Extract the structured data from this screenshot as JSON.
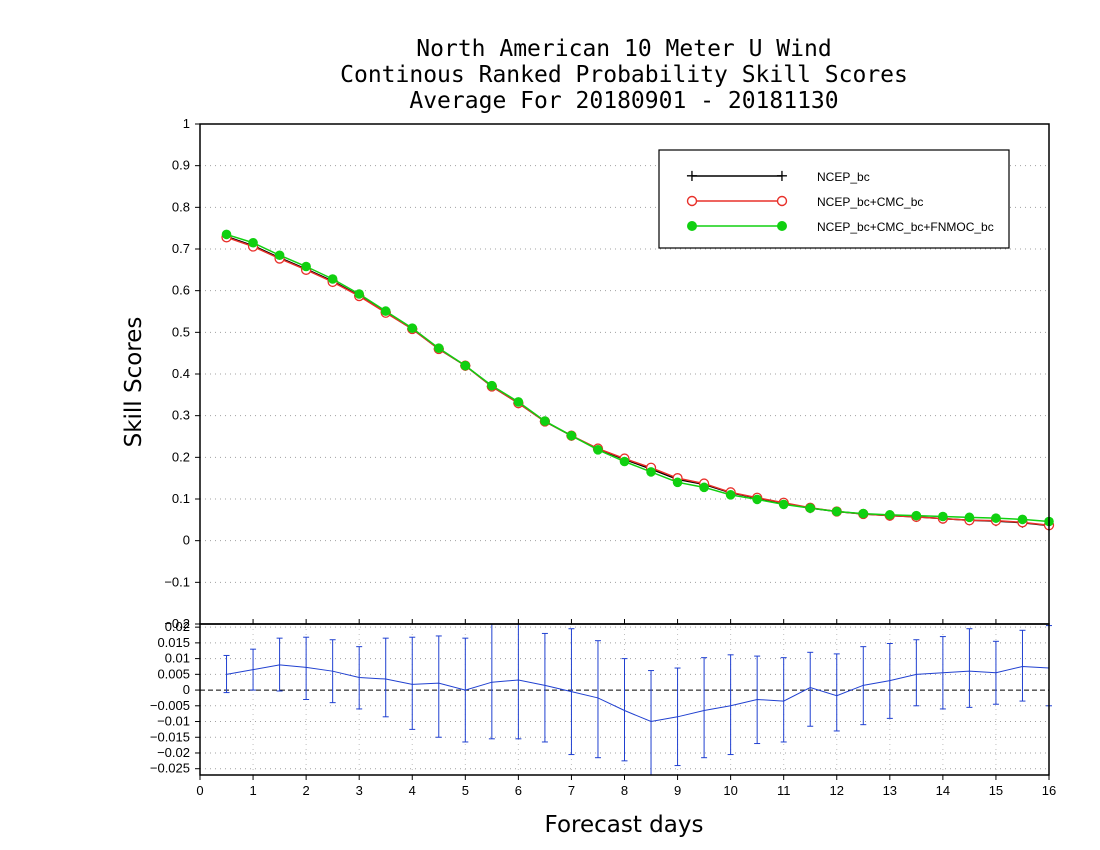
{
  "title": {
    "line1": "North American 10 Meter U Wind",
    "line2": "Continous Ranked Probability Skill Scores",
    "line3": "Average For 20180901 - 20181130"
  },
  "colors": {
    "NCEP_bc": "#000000",
    "NCEP_bc+CMC_bc": "#e8302a",
    "NCEP_bc+CMC_bc+FNMOC_bc": "#10d010",
    "difference": "#2040d0"
  },
  "chart_data": [
    {
      "type": "line",
      "xlabel": "Forecast days",
      "ylabel": "Skill Scores",
      "xlim": [
        0,
        16
      ],
      "ylim": [
        -0.2,
        1
      ],
      "xticks": [
        "0",
        "1",
        "2",
        "3",
        "4",
        "5",
        "6",
        "7",
        "8",
        "9",
        "10",
        "11",
        "12",
        "13",
        "14",
        "15",
        "16"
      ],
      "yticks": [
        "1",
        "0.9",
        "0.8",
        "0.7",
        "0.6",
        "0.5",
        "0.4",
        "0.3",
        "0.2",
        "0.1",
        "0",
        "-0.1",
        "-0.2"
      ],
      "grid": true,
      "legend": "top-right",
      "x": [
        0.5,
        1,
        1.5,
        2,
        2.5,
        3,
        3.5,
        4,
        4.5,
        5,
        5.5,
        6,
        6.5,
        7,
        7.5,
        8,
        8.5,
        9,
        9.5,
        10,
        10.5,
        11,
        11.5,
        12,
        12.5,
        13,
        13.5,
        14,
        14.5,
        15,
        15.5,
        16
      ],
      "series": [
        {
          "name": "NCEP_bc",
          "marker": "plus",
          "values": [
            0.73,
            0.708,
            0.679,
            0.652,
            0.623,
            0.588,
            0.548,
            0.508,
            0.46,
            0.42,
            0.37,
            0.33,
            0.286,
            0.252,
            0.22,
            0.195,
            0.172,
            0.147,
            0.135,
            0.115,
            0.102,
            0.09,
            0.078,
            0.07,
            0.064,
            0.06,
            0.057,
            0.053,
            0.049,
            0.047,
            0.043,
            0.036
          ]
        },
        {
          "name": "NCEP_bc+CMC_bc",
          "marker": "open-circle",
          "values": [
            0.728,
            0.706,
            0.677,
            0.65,
            0.621,
            0.587,
            0.547,
            0.508,
            0.46,
            0.42,
            0.37,
            0.33,
            0.286,
            0.252,
            0.221,
            0.197,
            0.175,
            0.15,
            0.137,
            0.116,
            0.103,
            0.091,
            0.079,
            0.07,
            0.064,
            0.06,
            0.057,
            0.053,
            0.049,
            0.048,
            0.044,
            0.037
          ]
        },
        {
          "name": "NCEP_bc+CMC_bc+FNMOC_bc",
          "marker": "filled-circle",
          "values": [
            0.735,
            0.715,
            0.685,
            0.658,
            0.628,
            0.592,
            0.551,
            0.51,
            0.462,
            0.42,
            0.372,
            0.333,
            0.287,
            0.252,
            0.218,
            0.19,
            0.165,
            0.14,
            0.128,
            0.11,
            0.099,
            0.087,
            0.078,
            0.07,
            0.065,
            0.062,
            0.06,
            0.058,
            0.056,
            0.054,
            0.051,
            0.046
          ]
        }
      ]
    },
    {
      "type": "line",
      "xlim": [
        0,
        16
      ],
      "ylim": [
        -0.027,
        0.021
      ],
      "yticks": [
        "0.02",
        "0.015",
        "0.01",
        "0.005",
        "0",
        "-0.005",
        "-0.01",
        "-0.015",
        "-0.02",
        "-0.025"
      ],
      "grid": true,
      "zero_line": "dashed",
      "x": [
        0.5,
        1,
        1.5,
        2,
        2.5,
        3,
        3.5,
        4,
        4.5,
        5,
        5.5,
        6,
        6.5,
        7,
        7.5,
        8,
        8.5,
        9,
        9.5,
        10,
        10.5,
        11,
        11.5,
        12,
        12.5,
        13,
        13.5,
        14,
        14.5,
        15,
        15.5,
        16
      ],
      "values": [
        0.005,
        0.0065,
        0.008,
        0.0072,
        0.006,
        0.004,
        0.0035,
        0.0018,
        0.0022,
        0.0,
        0.0025,
        0.0032,
        0.0015,
        -0.0005,
        -0.0025,
        -0.0065,
        -0.01,
        -0.0085,
        -0.0065,
        -0.005,
        -0.003,
        -0.0035,
        0.0008,
        -0.0018,
        0.0015,
        0.003,
        0.005,
        0.0055,
        0.006,
        0.0055,
        0.0075,
        0.007
      ],
      "error_low": [
        -0.0008,
        0.0,
        -0.0003,
        -0.003,
        -0.004,
        -0.006,
        -0.0085,
        -0.0125,
        -0.015,
        -0.0165,
        -0.0155,
        -0.0155,
        -0.0165,
        -0.0205,
        -0.0215,
        -0.0225,
        -0.027,
        -0.024,
        -0.0215,
        -0.0205,
        -0.017,
        -0.0165,
        -0.0115,
        -0.013,
        -0.011,
        -0.009,
        -0.005,
        -0.006,
        -0.0055,
        -0.0045,
        -0.0035,
        -0.005
      ],
      "error_high": [
        0.011,
        0.013,
        0.0165,
        0.0168,
        0.016,
        0.0138,
        0.0165,
        0.0168,
        0.0172,
        0.0165,
        0.0215,
        0.0235,
        0.018,
        0.0195,
        0.0157,
        0.01,
        0.0062,
        0.007,
        0.0103,
        0.0112,
        0.0108,
        0.0103,
        0.012,
        0.0115,
        0.0138,
        0.0148,
        0.016,
        0.017,
        0.0195,
        0.0155,
        0.019,
        0.0205
      ]
    }
  ]
}
